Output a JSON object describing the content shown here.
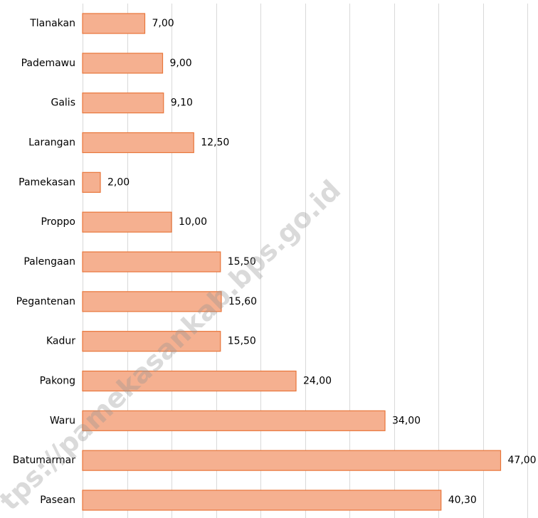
{
  "chart_data": {
    "type": "bar",
    "orientation": "horizontal",
    "categories": [
      "Tlanakan",
      "Pademawu",
      "Galis",
      "Larangan",
      "Pamekasan",
      "Proppo",
      "Palengaan",
      "Pegantenan",
      "Kadur",
      "Pakong",
      "Waru",
      "Batumarmar",
      "Pasean"
    ],
    "values": [
      7,
      9,
      9.1,
      12.5,
      2,
      10,
      15.5,
      15.6,
      15.5,
      24,
      34,
      47,
      40.3
    ],
    "value_labels": [
      "7,00",
      "9,00",
      "9,10",
      "12,50",
      "2,00",
      "10,00",
      "15,50",
      "15,60",
      "15,50",
      "24,00",
      "34,00",
      "47,00",
      "40,30"
    ],
    "color": "#f5b090",
    "edge_color": "#e8763a",
    "xlim": [
      0,
      50
    ],
    "xticks": [
      0,
      5,
      10,
      15,
      20,
      25,
      30,
      35,
      40,
      45,
      50
    ],
    "grid": true,
    "watermark": "tps://pamekasankab.bps.go.id"
  }
}
